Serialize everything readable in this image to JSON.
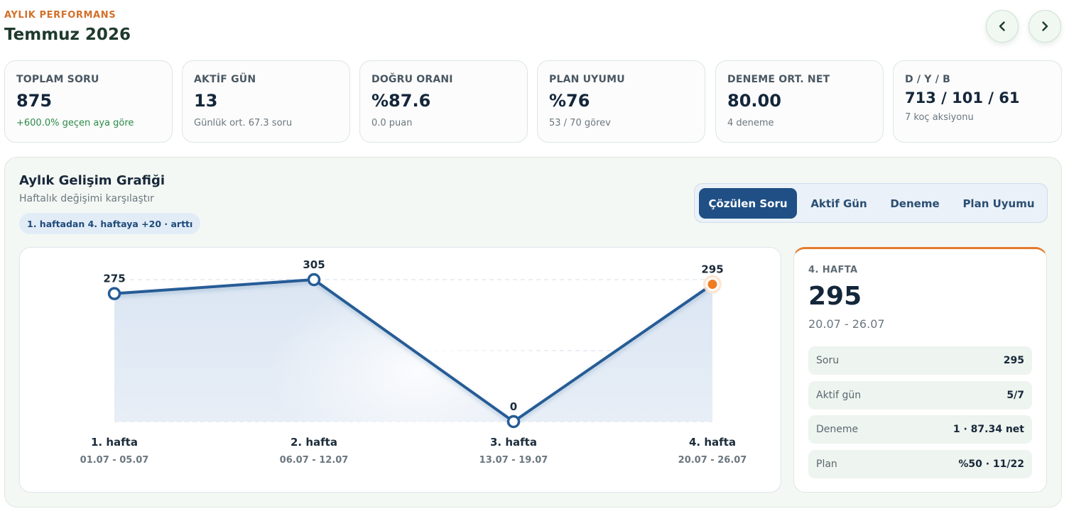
{
  "header": {
    "eyebrow": "AYLIK PERFORMANS",
    "title": "Temmuz 2026",
    "prev_icon": "chevron-left-icon",
    "next_icon": "chevron-right-icon"
  },
  "stats": [
    {
      "label": "TOPLAM SORU",
      "value": "875",
      "sub": "+600.0% geçen aya göre"
    },
    {
      "label": "AKTİF GÜN",
      "value": "13",
      "sub": "Günlük ort. 67.3 soru"
    },
    {
      "label": "DOĞRU ORANI",
      "value": "%87.6",
      "sub": "0.0 puan"
    },
    {
      "label": "PLAN UYUMU",
      "value": "%76",
      "sub": "53 / 70 görev"
    },
    {
      "label": "DENEME ORT. NET",
      "value": "80.00",
      "sub": "4 deneme"
    },
    {
      "label": "D / Y / B",
      "value": "713 / 101 / 61",
      "sub": "7 koç aksiyonu"
    }
  ],
  "panel": {
    "title": "Aylık Gelişim Grafiği",
    "subtitle": "Haftalık değişimi karşılaştır",
    "trend_pill": "1. haftadan 4. haftaya +20 · arttı"
  },
  "tabs": [
    {
      "label": "Çözülen Soru",
      "active": true
    },
    {
      "label": "Aktif Gün",
      "active": false
    },
    {
      "label": "Deneme",
      "active": false
    },
    {
      "label": "Plan Uyumu",
      "active": false
    }
  ],
  "chart_data": {
    "type": "area",
    "categories": [
      "1. hafta",
      "2. hafta",
      "3. hafta",
      "4. hafta"
    ],
    "date_ranges": [
      "01.07 - 05.07",
      "06.07 - 12.07",
      "13.07 - 19.07",
      "20.07 - 26.07"
    ],
    "values": [
      275,
      305,
      0,
      295
    ],
    "ylim": [
      0,
      305
    ],
    "grid": true,
    "selected_index": 3,
    "line_color": "#255c96",
    "highlight_color": "#f07c22"
  },
  "detail": {
    "label": "4. HAFTA",
    "value": "295",
    "range": "20.07 - 26.07",
    "rows": [
      {
        "label": "Soru",
        "value": "295"
      },
      {
        "label": "Aktif gün",
        "value": "5/7"
      },
      {
        "label": "Deneme",
        "value": "1 · 87.34 net"
      },
      {
        "label": "Plan",
        "value": "%50 · 11/22"
      }
    ]
  }
}
